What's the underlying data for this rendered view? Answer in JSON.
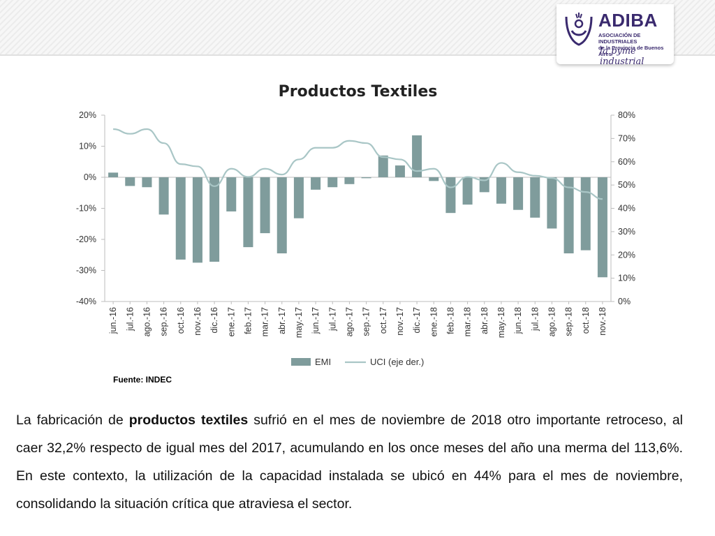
{
  "header": {
    "brand": {
      "name": "ADIBA",
      "subtitle_line1": "ASOCIACIÓN DE INDUSTRIALES",
      "subtitle_line2": "de la Provincia de Buenos Aires",
      "tagline": "la pyme industrial",
      "color": "#3a2a6e"
    }
  },
  "chart_data": {
    "type": "bar",
    "title": "Productos Textiles",
    "xlabel": "",
    "ylabel": "",
    "categories": [
      "jun.-16",
      "jul.-16",
      "ago.-16",
      "sep.-16",
      "oct.-16",
      "nov.-16",
      "dic.-16",
      "ene.-17",
      "feb.-17",
      "mar.-17",
      "abr.-17",
      "may.-17",
      "jun.-17",
      "jul.-17",
      "ago.-17",
      "sep.-17",
      "oct.-17",
      "nov.-17",
      "dic.-17",
      "ene.-18",
      "feb.-18",
      "mar.-18",
      "abr.-18",
      "may.-18",
      "jun.-18",
      "jul.-18",
      "ago.-18",
      "sep.-18",
      "oct.-18",
      "nov.-18"
    ],
    "series": [
      {
        "name": "EMI",
        "kind": "bar",
        "axis": "left",
        "color": "#7f9c9c",
        "values": [
          1.5,
          -2.8,
          -3.2,
          -12,
          -26.5,
          -27.5,
          -27.2,
          -11,
          -22.5,
          -18,
          -24.5,
          -13.2,
          -4,
          -3.2,
          -2.2,
          -0.3,
          7,
          3.8,
          13.5,
          -1.2,
          -11.5,
          -8.8,
          -4.8,
          -8.5,
          -10.5,
          -13,
          -16.5,
          -24.5,
          -23.5,
          -32.2
        ]
      },
      {
        "name": "UCI (eje der.)",
        "kind": "line",
        "axis": "right",
        "color": "#a9c6c6",
        "values": [
          74,
          72,
          74,
          68,
          59,
          58,
          49.5,
          57,
          53.5,
          57,
          54.5,
          61,
          66,
          66,
          69,
          68,
          62,
          61,
          56,
          57,
          49,
          53.5,
          52,
          59.5,
          55.5,
          54,
          53,
          49,
          47,
          44
        ]
      }
    ],
    "y_left": {
      "min": -40,
      "max": 20,
      "ticks": [
        "20%",
        "10%",
        "0%",
        "-10%",
        "-20%",
        "-30%",
        "-40%"
      ]
    },
    "y_right": {
      "min": 0,
      "max": 80,
      "ticks": [
        "80%",
        "70%",
        "60%",
        "50%",
        "40%",
        "30%",
        "20%",
        "10%",
        "0%"
      ]
    },
    "grid": false,
    "legend_position": "bottom"
  },
  "source_note": "Fuente: INDEC",
  "paragraph": {
    "p1": "La fabricación de ",
    "b1": "productos textiles",
    "p2": " sufrió en el mes de noviembre de 2018 otro importante retroceso, al caer 32,2% respecto de igual mes del 2017, acumulando en los once meses del año una merma del 113,6%. En este contexto, la utilización de la capacidad instalada se ubicó en 44% para el mes de noviembre, consolidando la situación crítica que atraviesa el sector."
  }
}
